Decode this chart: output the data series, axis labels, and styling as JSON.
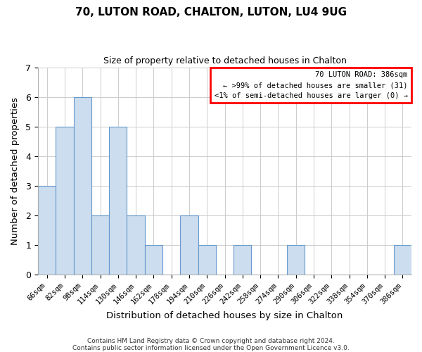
{
  "title": "70, LUTON ROAD, CHALTON, LUTON, LU4 9UG",
  "subtitle": "Size of property relative to detached houses in Chalton",
  "xlabel": "Distribution of detached houses by size in Chalton",
  "ylabel": "Number of detached properties",
  "bar_fill_color": "#ccddef",
  "bar_edge_color": "#6699cc",
  "categories": [
    "66sqm",
    "82sqm",
    "98sqm",
    "114sqm",
    "130sqm",
    "146sqm",
    "162sqm",
    "178sqm",
    "194sqm",
    "210sqm",
    "226sqm",
    "242sqm",
    "258sqm",
    "274sqm",
    "290sqm",
    "306sqm",
    "322sqm",
    "338sqm",
    "354sqm",
    "370sqm",
    "386sqm"
  ],
  "values": [
    3,
    5,
    6,
    2,
    5,
    2,
    1,
    0,
    2,
    1,
    0,
    1,
    0,
    0,
    1,
    0,
    0,
    0,
    0,
    0,
    1
  ],
  "ylim": [
    0,
    7
  ],
  "yticks": [
    0,
    1,
    2,
    3,
    4,
    5,
    6,
    7
  ],
  "annotation_box_text": "70 LUTON ROAD: 386sqm\n← >99% of detached houses are smaller (31)\n<1% of semi-detached houses are larger (0) →",
  "annotation_box_edge_color": "red",
  "footnote1": "Contains HM Land Registry data © Crown copyright and database right 2024.",
  "footnote2": "Contains public sector information licensed under the Open Government Licence v3.0.",
  "grid_color": "#cccccc",
  "background_color": "#ffffff",
  "fig_width": 6.0,
  "fig_height": 5.0
}
